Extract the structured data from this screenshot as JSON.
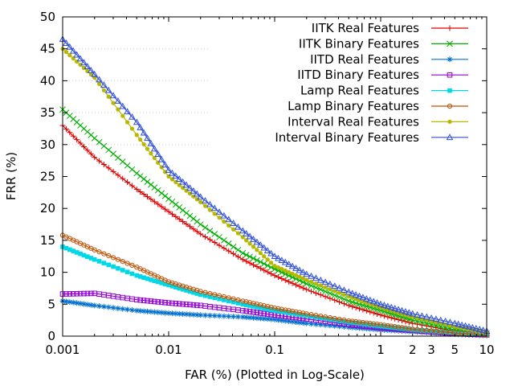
{
  "chart_data": {
    "type": "line",
    "xscale": "log",
    "xlabel": "FAR (%) (Plotted in Log-Scale)",
    "ylabel": "FRR (%)",
    "xlim": [
      0.001,
      10
    ],
    "ylim": [
      0,
      50
    ],
    "x_ticks": [
      {
        "value": 0.001,
        "label": "0.001"
      },
      {
        "value": 0.01,
        "label": "0.01"
      },
      {
        "value": 0.1,
        "label": "0.1"
      },
      {
        "value": 1,
        "label": "1"
      },
      {
        "value": 2,
        "label": "2"
      },
      {
        "value": 3,
        "label": "3"
      },
      {
        "value": 5,
        "label": "5"
      },
      {
        "value": 10,
        "label": "10"
      }
    ],
    "y_ticks": [
      {
        "value": 0,
        "label": "0"
      },
      {
        "value": 5,
        "label": "5"
      },
      {
        "value": 10,
        "label": "10"
      },
      {
        "value": 15,
        "label": "15"
      },
      {
        "value": 20,
        "label": "20"
      },
      {
        "value": 25,
        "label": "25"
      },
      {
        "value": 30,
        "label": "30"
      },
      {
        "value": 35,
        "label": "35"
      },
      {
        "value": 40,
        "label": "40"
      },
      {
        "value": 45,
        "label": "45"
      },
      {
        "value": 50,
        "label": "50"
      }
    ],
    "legend_position": "top-right",
    "series": [
      {
        "name": "IITK Real Features",
        "color": "#e00000",
        "marker": "plus",
        "x": [
          0.001,
          0.002,
          0.005,
          0.01,
          0.02,
          0.05,
          0.1,
          0.2,
          0.5,
          1,
          2,
          5,
          10
        ],
        "y": [
          33.0,
          28.0,
          23.0,
          19.5,
          16.0,
          12.0,
          9.5,
          7.3,
          4.8,
          3.3,
          2.0,
          0.8,
          0.3
        ]
      },
      {
        "name": "IITK Binary Features",
        "color": "#00b000",
        "marker": "x",
        "x": [
          0.001,
          0.002,
          0.005,
          0.01,
          0.02,
          0.05,
          0.1,
          0.2,
          0.5,
          1,
          2,
          5,
          10
        ],
        "y": [
          35.5,
          31.0,
          25.5,
          21.5,
          17.5,
          13.0,
          10.5,
          8.2,
          5.5,
          4.0,
          2.5,
          1.0,
          0.4
        ]
      },
      {
        "name": "IITD Real Features",
        "color": "#0070d0",
        "marker": "star",
        "x": [
          0.001,
          0.002,
          0.005,
          0.01,
          0.02,
          0.05,
          0.1,
          0.2,
          0.5,
          1,
          2,
          5,
          10
        ],
        "y": [
          5.5,
          4.8,
          4.0,
          3.6,
          3.3,
          3.0,
          2.6,
          2.0,
          1.4,
          1.0,
          0.7,
          0.3,
          0.1
        ]
      },
      {
        "name": "IITD Binary Features",
        "color": "#9400d3",
        "marker": "square-open",
        "x": [
          0.001,
          0.002,
          0.005,
          0.01,
          0.02,
          0.05,
          0.1,
          0.2,
          0.5,
          1,
          2,
          5,
          10
        ],
        "y": [
          6.6,
          6.7,
          5.7,
          5.2,
          4.8,
          4.0,
          3.3,
          2.7,
          1.8,
          1.3,
          0.9,
          0.4,
          0.2
        ]
      },
      {
        "name": "Lamp Real Features",
        "color": "#00d8e8",
        "marker": "square-filled",
        "x": [
          0.001,
          0.002,
          0.005,
          0.01,
          0.02,
          0.05,
          0.1,
          0.2,
          0.5,
          1,
          2,
          5,
          10
        ],
        "y": [
          14.0,
          12.0,
          9.5,
          8.0,
          6.5,
          5.0,
          4.0,
          3.2,
          2.2,
          1.6,
          1.0,
          0.5,
          0.2
        ]
      },
      {
        "name": "Lamp Binary Features",
        "color": "#c05000",
        "marker": "circle-open",
        "x": [
          0.001,
          0.002,
          0.005,
          0.01,
          0.02,
          0.05,
          0.1,
          0.2,
          0.5,
          1,
          2,
          5,
          10
        ],
        "y": [
          15.8,
          13.5,
          10.8,
          8.5,
          7.0,
          5.5,
          4.4,
          3.5,
          2.4,
          1.8,
          1.1,
          0.5,
          0.2
        ]
      },
      {
        "name": "Interval Real Features",
        "color": "#b8b800",
        "marker": "circle-filled",
        "x": [
          0.001,
          0.002,
          0.005,
          0.01,
          0.02,
          0.05,
          0.1,
          0.2,
          0.5,
          1,
          2,
          5,
          10
        ],
        "y": [
          45.0,
          40.5,
          31.5,
          25.0,
          21.0,
          15.5,
          11.0,
          8.8,
          6.2,
          4.5,
          3.0,
          1.5,
          0.6
        ]
      },
      {
        "name": "Interval Binary Features",
        "color": "#3050d8",
        "marker": "triangle-open",
        "x": [
          0.001,
          0.002,
          0.005,
          0.01,
          0.02,
          0.05,
          0.1,
          0.2,
          0.5,
          1,
          2,
          5,
          10
        ],
        "y": [
          46.5,
          41.0,
          33.5,
          26.0,
          21.8,
          16.5,
          12.5,
          9.7,
          6.9,
          5.0,
          3.5,
          2.0,
          0.8
        ]
      }
    ]
  }
}
